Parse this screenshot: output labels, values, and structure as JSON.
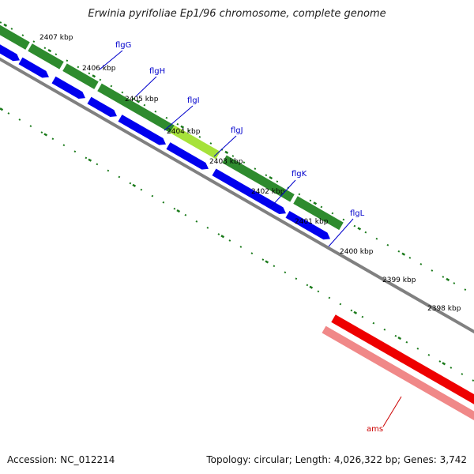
{
  "title": "Erwinia pyrifoliae Ep1/96 chromosome, complete genome",
  "footer": {
    "accession": "Accession: NC_012214",
    "summary": "Topology: circular; Length: 4,026,322 bp; Genes: 3,742"
  },
  "kbp_labels": [
    "2407 kbp",
    "2406 kbp",
    "2405 kbp",
    "2404 kbp",
    "2403 kbp",
    "2402 kbp",
    "2401 kbp",
    "2400 kbp",
    "2399 kbp",
    "2398 kbp"
  ],
  "genes": [
    {
      "name": "flgG",
      "color": "#0000cc"
    },
    {
      "name": "flgH",
      "color": "#0000cc"
    },
    {
      "name": "flgI",
      "color": "#0000cc"
    },
    {
      "name": "flgJ",
      "color": "#0000cc"
    },
    {
      "name": "flgK",
      "color": "#0000cc"
    },
    {
      "name": "flgL",
      "color": "#0000cc"
    },
    {
      "name": "ams",
      "color": "#cc0000"
    }
  ],
  "colors": {
    "green_track": "#2e8b2e",
    "highlight_green": "#a6e23a",
    "blue_cds": "#0000ee",
    "red_cds": "#ee0000",
    "pink_cds": "#f08888",
    "backbone": "#808080",
    "tick": "#1a7a1a"
  }
}
